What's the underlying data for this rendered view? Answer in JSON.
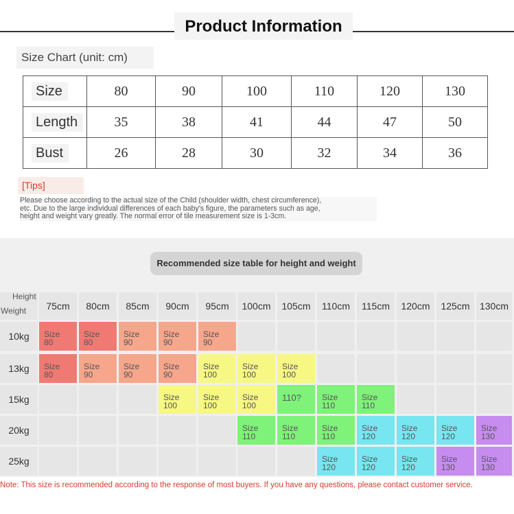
{
  "header": {
    "title": "Product Information"
  },
  "size_chart": {
    "caption": "Size Chart (unit: cm)",
    "rows": [
      {
        "label": "Size",
        "values": [
          "80",
          "90",
          "100",
          "110",
          "120",
          "130"
        ]
      },
      {
        "label": "Length",
        "values": [
          "35",
          "38",
          "41",
          "44",
          "47",
          "50"
        ]
      },
      {
        "label": "Bust",
        "values": [
          "26",
          "28",
          "30",
          "32",
          "34",
          "36"
        ]
      }
    ]
  },
  "tips": {
    "label": "[Tips]",
    "lines": [
      "Please choose according to the actual size of the Child (shoulder width, chest circumference),",
      "etc. Due to the large individual differences of each baby's figure, the parameters such as age,",
      "height and weight vary greatly. The normal error of tile measurement size is 1-3cm."
    ]
  },
  "recommend": {
    "title": "Recommended size table for height and weight",
    "corner_height": "Height",
    "corner_weight": "Weight",
    "heights": [
      "75cm",
      "80cm",
      "85cm",
      "90cm",
      "95cm",
      "100cm",
      "105cm",
      "110cm",
      "115cm",
      "120cm",
      "125cm",
      "130cm"
    ],
    "weights": [
      "10kg",
      "13kg",
      "15kg",
      "20kg",
      "25kg"
    ],
    "colors": {
      "red": "#f07a73",
      "salmon": "#f6a68b",
      "yellow": "#f7f884",
      "green": "#7ff279",
      "cyan": "#78e6f0",
      "purple": "#c78cf0",
      "empty": "#e6e6e6"
    },
    "cells": [
      [
        {
          "t": "Size",
          "s": "80",
          "c": "red"
        },
        {
          "t": "Size",
          "s": "80",
          "c": "red"
        },
        {
          "t": "Size",
          "s": "90",
          "c": "salmon"
        },
        {
          "t": "Size",
          "s": "90",
          "c": "salmon"
        },
        {
          "t": "Size",
          "s": "90",
          "c": "salmon"
        },
        null,
        null,
        null,
        null,
        null,
        null,
        null
      ],
      [
        {
          "t": "Size",
          "s": "80",
          "c": "red"
        },
        {
          "t": "Size",
          "s": "90",
          "c": "salmon"
        },
        {
          "t": "Size",
          "s": "90",
          "c": "salmon"
        },
        {
          "t": "Size",
          "s": "90",
          "c": "salmon"
        },
        {
          "t": "Size",
          "s": "100",
          "c": "yellow"
        },
        {
          "t": "Size",
          "s": "100",
          "c": "yellow"
        },
        {
          "t": "Size",
          "s": "100",
          "c": "yellow"
        },
        null,
        null,
        null,
        null,
        null
      ],
      [
        null,
        null,
        null,
        {
          "t": "Size",
          "s": "100",
          "c": "yellow"
        },
        {
          "t": "Size",
          "s": "100",
          "c": "yellow"
        },
        {
          "t": "Size",
          "s": "100",
          "c": "yellow"
        },
        {
          "t": "110?",
          "s": "",
          "c": "green"
        },
        {
          "t": "Size",
          "s": "110",
          "c": "green"
        },
        {
          "t": "Size",
          "s": "110",
          "c": "green"
        },
        null,
        null,
        null
      ],
      [
        null,
        null,
        null,
        null,
        null,
        {
          "t": "Size",
          "s": "110",
          "c": "green"
        },
        {
          "t": "Size",
          "s": "110",
          "c": "green"
        },
        {
          "t": "Size",
          "s": "110",
          "c": "green"
        },
        {
          "t": "Size",
          "s": "120",
          "c": "cyan"
        },
        {
          "t": "Size",
          "s": "120",
          "c": "cyan"
        },
        {
          "t": "Size",
          "s": "120",
          "c": "cyan"
        },
        {
          "t": "Size",
          "s": "130",
          "c": "purple"
        }
      ],
      [
        null,
        null,
        null,
        null,
        null,
        null,
        null,
        {
          "t": "Size",
          "s": "120",
          "c": "cyan"
        },
        {
          "t": "Size",
          "s": "120",
          "c": "cyan"
        },
        {
          "t": "Size",
          "s": "120",
          "c": "cyan"
        },
        {
          "t": "Size",
          "s": "130",
          "c": "purple"
        },
        {
          "t": "Size",
          "s": "130",
          "c": "purple"
        }
      ]
    ]
  },
  "note": "Note: This size is recommended according to the response of most buyers. If you have any questions, please contact customer service."
}
